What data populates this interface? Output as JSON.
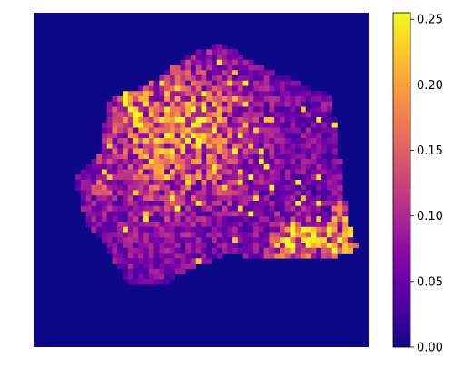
{
  "chart_data": {
    "type": "heatmap",
    "title": "",
    "xlabel": "",
    "ylabel": "",
    "x_axis_visible": false,
    "y_axis_visible": false,
    "grid": false,
    "colormap": "plasma",
    "grid_size": [
      64,
      64
    ],
    "clim": [
      0,
      0.255
    ],
    "background_value": 0.0,
    "colorbar": {
      "location": "right",
      "ticks": [
        0.0,
        0.05,
        0.1,
        0.15,
        0.2,
        0.25
      ],
      "tick_labels": [
        "0.00",
        "0.05",
        "0.10",
        "0.15",
        "0.20",
        "0.25"
      ]
    },
    "region": {
      "description": "irregular polygon of nonzero values; outside is 0",
      "outline": [
        [
          36,
          6
        ],
        [
          45,
          11
        ],
        [
          57,
          16
        ],
        [
          60,
          40
        ],
        [
          62,
          45
        ],
        [
          57,
          47
        ],
        [
          44,
          47
        ],
        [
          37,
          46
        ],
        [
          28,
          50
        ],
        [
          25,
          52
        ],
        [
          18,
          52
        ],
        [
          14,
          45
        ],
        [
          10,
          40
        ],
        [
          8,
          32
        ],
        [
          13,
          26
        ],
        [
          14,
          17
        ],
        [
          23,
          13
        ],
        [
          30,
          8
        ]
      ]
    },
    "value_distribution": {
      "typical_range": [
        0.03,
        0.15
      ],
      "mean_outside_hotspots": 0.06,
      "max": 0.255
    },
    "hotspots": [
      {
        "center": [
          27,
          24
        ],
        "radius": 9,
        "value": 0.16
      },
      {
        "center": [
          31,
          22
        ],
        "radius": 6,
        "value": 0.18
      },
      {
        "center": [
          20,
          18
        ],
        "radius": 2,
        "value": 0.22
      },
      {
        "center": [
          21,
          27
        ],
        "radius": 3,
        "value": 0.14
      },
      {
        "center": [
          50,
          44
        ],
        "radius": 3,
        "value": 0.2
      },
      {
        "center": [
          47,
          46
        ],
        "radius": 2,
        "value": 0.18
      },
      {
        "center": [
          58,
          44
        ],
        "radius": 3,
        "value": 0.18
      },
      {
        "center": [
          13,
          33
        ],
        "radius": 2,
        "value": 0.12
      }
    ],
    "band_hotspots": [
      {
        "from": [
          17,
          13
        ],
        "to": [
          19,
          20
        ],
        "width": 1.3,
        "value": 0.22
      },
      {
        "from": [
          50,
          42
        ],
        "to": [
          58,
          45
        ],
        "width": 1.4,
        "value": 0.22
      },
      {
        "from": [
          59,
          38
        ],
        "to": [
          62,
          44
        ],
        "width": 1.2,
        "value": 0.17
      }
    ]
  }
}
